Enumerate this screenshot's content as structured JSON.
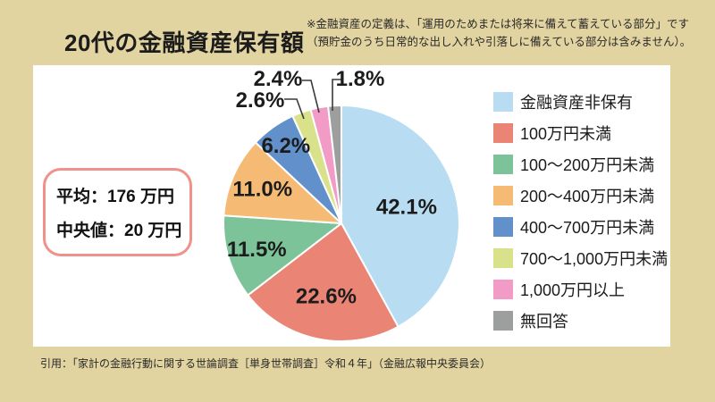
{
  "header": {
    "title": "20代の金融資産保有額",
    "note_line1": "※金融資産の定義は、「運用のためまたは将来に備えて蓄えている部分」です",
    "note_line2": "（預貯金のうち日常的な出し入れや引落しに備えている部分は含みません）。"
  },
  "stats": {
    "average": "平均：176 万円",
    "median": "中央値：20 万円"
  },
  "footer": {
    "citation": "引用：「家計の金融行動に関する世論調査［単身世帯調査］令和４年」（金融広報中央委員会）"
  },
  "colors": {
    "background": "#e2d4a0",
    "panel": "#ffffff",
    "stat_box_border": "#f0918a",
    "leader_line": "#3a3a3a"
  },
  "chart_data": {
    "type": "pie",
    "title": "20代の金融資産保有額",
    "direction": "clockwise",
    "start_angle_deg": 0,
    "legend_position": "right",
    "series": [
      {
        "label": "金融資産非保有",
        "value": 42.1,
        "color": "#b8ddf2"
      },
      {
        "label": "100万円未満",
        "value": 22.6,
        "color": "#ea8474"
      },
      {
        "label": "100〜200万円未満",
        "value": 11.5,
        "color": "#7dc39a"
      },
      {
        "label": "200〜400万円未満",
        "value": 11.0,
        "color": "#f5ba74"
      },
      {
        "label": "400〜700万円未満",
        "value": 6.2,
        "color": "#6190cb"
      },
      {
        "label": "700〜1,000万円未満",
        "value": 2.6,
        "color": "#d9e28b"
      },
      {
        "label": "1,000万円以上",
        "value": 2.4,
        "color": "#f19bc6"
      },
      {
        "label": "無回答",
        "value": 1.8,
        "color": "#9d9e9e"
      }
    ]
  }
}
